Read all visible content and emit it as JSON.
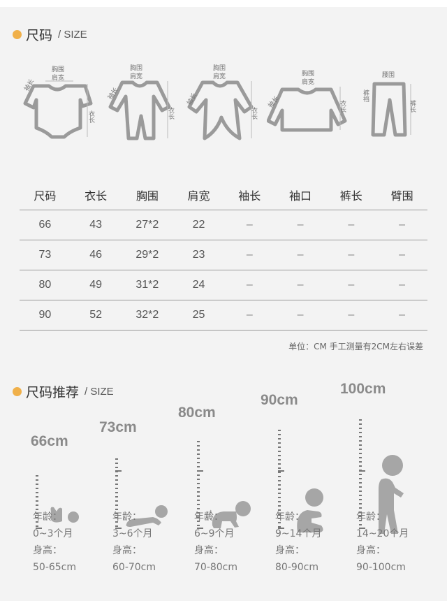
{
  "section1": {
    "title_cn": "尺码",
    "title_en": "/ SIZE"
  },
  "garments": [
    {
      "name": "bodysuit",
      "labels": [
        "胸围",
        "肩宽",
        "袖长",
        "衣长"
      ]
    },
    {
      "name": "romper",
      "labels": [
        "胸围",
        "肩宽",
        "袖长",
        "衣长"
      ]
    },
    {
      "name": "gown-romper",
      "labels": [
        "胸围",
        "肩宽",
        "袖长",
        "衣长"
      ]
    },
    {
      "name": "jacket",
      "labels": [
        "胸围",
        "肩宽",
        "袖长",
        "衣长"
      ]
    },
    {
      "name": "pants",
      "labels": [
        "腰围",
        "裤裆",
        "裤长"
      ]
    }
  ],
  "table": {
    "headers": [
      "尺码",
      "衣长",
      "胸围",
      "肩宽",
      "袖长",
      "袖口",
      "裤长",
      "臂围"
    ],
    "rows": [
      [
        "66",
        "43",
        "27*2",
        "22",
        "–",
        "–",
        "–",
        "–"
      ],
      [
        "73",
        "46",
        "29*2",
        "23",
        "–",
        "–",
        "–",
        "–"
      ],
      [
        "80",
        "49",
        "31*2",
        "24",
        "–",
        "–",
        "–",
        "–"
      ],
      [
        "90",
        "52",
        "32*2",
        "25",
        "–",
        "–",
        "–",
        "–"
      ]
    ],
    "note": "单位：CM 手工测量有2CM左右误差"
  },
  "section2": {
    "title_cn": "尺码推荐",
    "title_en": "/ SIZE"
  },
  "recommend": [
    {
      "height": "66cm",
      "age_label": "年龄：",
      "age": "0~3个月",
      "height_label": "身高：",
      "range": "50-65cm",
      "pose": "lying-baby"
    },
    {
      "height": "73cm",
      "age_label": "年龄：",
      "age": "3~6个月",
      "height_label": "身高：",
      "range": "60-70cm",
      "pose": "prone-baby"
    },
    {
      "height": "80cm",
      "age_label": "年龄：",
      "age": "6~9个月",
      "height_label": "身高：",
      "range": "70-80cm",
      "pose": "crawling-baby"
    },
    {
      "height": "90cm",
      "age_label": "年龄：",
      "age": "9~14个月",
      "height_label": "身高：",
      "range": "80-90cm",
      "pose": "sitting-baby"
    },
    {
      "height": "100cm",
      "age_label": "年龄：",
      "age": "14~20个月",
      "height_label": "身高：",
      "range": "90-100cm",
      "pose": "walking-toddler"
    }
  ],
  "colors": {
    "accent": "#f0b04a",
    "figure": "#a6a6a6",
    "background": "#f3f3f3"
  }
}
